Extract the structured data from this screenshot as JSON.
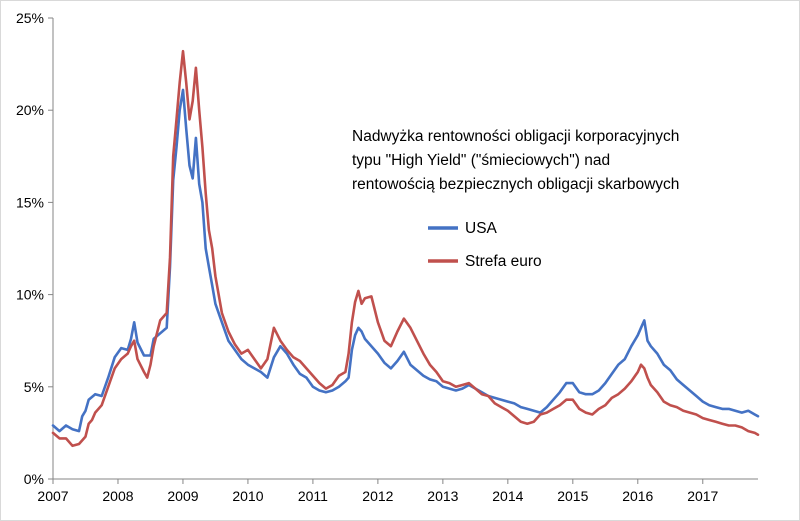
{
  "chart_data": {
    "type": "line",
    "title_lines": [
      "Nadwyżka rentowności obligacji korporacyjnych",
      "typu \"High Yield\" (\"śmieciowych\") nad",
      "rentowością bezpiecznych obligacji skarbowych"
    ],
    "xlabel": "",
    "ylabel": "",
    "xlim": [
      2007.0,
      2017.85
    ],
    "ylim": [
      0,
      25
    ],
    "x_ticks": [
      2007,
      2008,
      2009,
      2010,
      2011,
      2012,
      2013,
      2014,
      2015,
      2016,
      2017
    ],
    "x_tick_labels": [
      "2007",
      "2008",
      "2009",
      "2010",
      "2011",
      "2012",
      "2013",
      "2014",
      "2015",
      "2016",
      "2017"
    ],
    "y_ticks": [
      0,
      5,
      10,
      15,
      20,
      25
    ],
    "y_tick_labels": [
      "0%",
      "5%",
      "10%",
      "15%",
      "20%",
      "25%"
    ],
    "legend_position": "inside-upper-right",
    "series": [
      {
        "name": "USA",
        "color": "#4472c4",
        "points": [
          [
            2007.0,
            2.9
          ],
          [
            2007.1,
            2.6
          ],
          [
            2007.2,
            2.9
          ],
          [
            2007.3,
            2.7
          ],
          [
            2007.4,
            2.6
          ],
          [
            2007.45,
            3.4
          ],
          [
            2007.5,
            3.7
          ],
          [
            2007.55,
            4.3
          ],
          [
            2007.65,
            4.6
          ],
          [
            2007.75,
            4.5
          ],
          [
            2007.85,
            5.5
          ],
          [
            2007.95,
            6.6
          ],
          [
            2008.05,
            7.1
          ],
          [
            2008.15,
            7.0
          ],
          [
            2008.2,
            7.6
          ],
          [
            2008.25,
            8.5
          ],
          [
            2008.3,
            7.4
          ],
          [
            2008.4,
            6.7
          ],
          [
            2008.5,
            6.7
          ],
          [
            2008.55,
            7.6
          ],
          [
            2008.65,
            7.9
          ],
          [
            2008.75,
            8.2
          ],
          [
            2008.8,
            11.5
          ],
          [
            2008.85,
            16.2
          ],
          [
            2008.9,
            18.0
          ],
          [
            2008.95,
            20.0
          ],
          [
            2009.0,
            21.1
          ],
          [
            2009.05,
            19.0
          ],
          [
            2009.1,
            17.0
          ],
          [
            2009.15,
            16.3
          ],
          [
            2009.2,
            18.5
          ],
          [
            2009.25,
            16.0
          ],
          [
            2009.3,
            15.0
          ],
          [
            2009.35,
            12.5
          ],
          [
            2009.4,
            11.5
          ],
          [
            2009.45,
            10.5
          ],
          [
            2009.5,
            9.5
          ],
          [
            2009.6,
            8.5
          ],
          [
            2009.7,
            7.5
          ],
          [
            2009.8,
            7.0
          ],
          [
            2009.9,
            6.5
          ],
          [
            2010.0,
            6.2
          ],
          [
            2010.1,
            6.0
          ],
          [
            2010.2,
            5.8
          ],
          [
            2010.3,
            5.5
          ],
          [
            2010.4,
            6.6
          ],
          [
            2010.5,
            7.2
          ],
          [
            2010.6,
            6.8
          ],
          [
            2010.7,
            6.2
          ],
          [
            2010.8,
            5.7
          ],
          [
            2010.9,
            5.5
          ],
          [
            2011.0,
            5.0
          ],
          [
            2011.1,
            4.8
          ],
          [
            2011.2,
            4.7
          ],
          [
            2011.3,
            4.8
          ],
          [
            2011.4,
            5.0
          ],
          [
            2011.5,
            5.3
          ],
          [
            2011.55,
            5.5
          ],
          [
            2011.6,
            7.0
          ],
          [
            2011.65,
            7.8
          ],
          [
            2011.7,
            8.2
          ],
          [
            2011.75,
            8.0
          ],
          [
            2011.8,
            7.6
          ],
          [
            2011.9,
            7.2
          ],
          [
            2012.0,
            6.8
          ],
          [
            2012.1,
            6.3
          ],
          [
            2012.2,
            6.0
          ],
          [
            2012.3,
            6.4
          ],
          [
            2012.4,
            6.9
          ],
          [
            2012.5,
            6.2
          ],
          [
            2012.6,
            5.9
          ],
          [
            2012.7,
            5.6
          ],
          [
            2012.8,
            5.4
          ],
          [
            2012.9,
            5.3
          ],
          [
            2013.0,
            5.0
          ],
          [
            2013.1,
            4.9
          ],
          [
            2013.2,
            4.8
          ],
          [
            2013.3,
            4.9
          ],
          [
            2013.4,
            5.1
          ],
          [
            2013.5,
            4.9
          ],
          [
            2013.6,
            4.7
          ],
          [
            2013.7,
            4.5
          ],
          [
            2013.8,
            4.4
          ],
          [
            2013.9,
            4.3
          ],
          [
            2014.0,
            4.2
          ],
          [
            2014.1,
            4.1
          ],
          [
            2014.2,
            3.9
          ],
          [
            2014.3,
            3.8
          ],
          [
            2014.4,
            3.7
          ],
          [
            2014.5,
            3.6
          ],
          [
            2014.6,
            3.9
          ],
          [
            2014.7,
            4.3
          ],
          [
            2014.8,
            4.7
          ],
          [
            2014.9,
            5.2
          ],
          [
            2015.0,
            5.2
          ],
          [
            2015.1,
            4.7
          ],
          [
            2015.2,
            4.6
          ],
          [
            2015.3,
            4.6
          ],
          [
            2015.4,
            4.8
          ],
          [
            2015.5,
            5.2
          ],
          [
            2015.6,
            5.7
          ],
          [
            2015.7,
            6.2
          ],
          [
            2015.8,
            6.5
          ],
          [
            2015.9,
            7.2
          ],
          [
            2016.0,
            7.8
          ],
          [
            2016.05,
            8.2
          ],
          [
            2016.1,
            8.6
          ],
          [
            2016.15,
            7.5
          ],
          [
            2016.2,
            7.2
          ],
          [
            2016.3,
            6.8
          ],
          [
            2016.4,
            6.2
          ],
          [
            2016.5,
            5.9
          ],
          [
            2016.6,
            5.4
          ],
          [
            2016.7,
            5.1
          ],
          [
            2016.8,
            4.8
          ],
          [
            2016.9,
            4.5
          ],
          [
            2017.0,
            4.2
          ],
          [
            2017.1,
            4.0
          ],
          [
            2017.2,
            3.9
          ],
          [
            2017.3,
            3.8
          ],
          [
            2017.4,
            3.8
          ],
          [
            2017.5,
            3.7
          ],
          [
            2017.6,
            3.6
          ],
          [
            2017.7,
            3.7
          ],
          [
            2017.8,
            3.5
          ],
          [
            2017.85,
            3.4
          ]
        ]
      },
      {
        "name": "Strefa euro",
        "color": "#c0504d",
        "points": [
          [
            2007.0,
            2.5
          ],
          [
            2007.1,
            2.2
          ],
          [
            2007.2,
            2.2
          ],
          [
            2007.3,
            1.8
          ],
          [
            2007.4,
            1.9
          ],
          [
            2007.5,
            2.3
          ],
          [
            2007.55,
            3.0
          ],
          [
            2007.6,
            3.2
          ],
          [
            2007.65,
            3.6
          ],
          [
            2007.75,
            4.0
          ],
          [
            2007.85,
            5.0
          ],
          [
            2007.95,
            6.0
          ],
          [
            2008.05,
            6.5
          ],
          [
            2008.15,
            6.8
          ],
          [
            2008.2,
            7.2
          ],
          [
            2008.25,
            7.5
          ],
          [
            2008.3,
            6.5
          ],
          [
            2008.4,
            5.8
          ],
          [
            2008.45,
            5.5
          ],
          [
            2008.5,
            6.2
          ],
          [
            2008.55,
            7.2
          ],
          [
            2008.65,
            8.6
          ],
          [
            2008.75,
            9.0
          ],
          [
            2008.8,
            12.0
          ],
          [
            2008.85,
            17.5
          ],
          [
            2008.9,
            19.5
          ],
          [
            2008.95,
            21.5
          ],
          [
            2009.0,
            23.2
          ],
          [
            2009.05,
            21.5
          ],
          [
            2009.1,
            19.5
          ],
          [
            2009.15,
            20.5
          ],
          [
            2009.2,
            22.3
          ],
          [
            2009.25,
            20.0
          ],
          [
            2009.3,
            18.0
          ],
          [
            2009.35,
            15.5
          ],
          [
            2009.4,
            13.5
          ],
          [
            2009.45,
            12.5
          ],
          [
            2009.5,
            11.0
          ],
          [
            2009.6,
            9.0
          ],
          [
            2009.7,
            8.0
          ],
          [
            2009.8,
            7.3
          ],
          [
            2009.9,
            6.8
          ],
          [
            2010.0,
            7.0
          ],
          [
            2010.1,
            6.5
          ],
          [
            2010.2,
            6.0
          ],
          [
            2010.3,
            6.5
          ],
          [
            2010.4,
            8.2
          ],
          [
            2010.5,
            7.5
          ],
          [
            2010.6,
            7.0
          ],
          [
            2010.7,
            6.6
          ],
          [
            2010.8,
            6.4
          ],
          [
            2010.9,
            6.0
          ],
          [
            2011.0,
            5.6
          ],
          [
            2011.1,
            5.2
          ],
          [
            2011.2,
            4.9
          ],
          [
            2011.3,
            5.1
          ],
          [
            2011.4,
            5.6
          ],
          [
            2011.5,
            5.8
          ],
          [
            2011.55,
            6.8
          ],
          [
            2011.6,
            8.5
          ],
          [
            2011.65,
            9.6
          ],
          [
            2011.7,
            10.2
          ],
          [
            2011.75,
            9.5
          ],
          [
            2011.8,
            9.8
          ],
          [
            2011.9,
            9.9
          ],
          [
            2012.0,
            8.5
          ],
          [
            2012.1,
            7.5
          ],
          [
            2012.2,
            7.2
          ],
          [
            2012.3,
            8.0
          ],
          [
            2012.4,
            8.7
          ],
          [
            2012.5,
            8.2
          ],
          [
            2012.6,
            7.5
          ],
          [
            2012.7,
            6.8
          ],
          [
            2012.8,
            6.2
          ],
          [
            2012.9,
            5.8
          ],
          [
            2013.0,
            5.3
          ],
          [
            2013.1,
            5.2
          ],
          [
            2013.2,
            5.0
          ],
          [
            2013.3,
            5.1
          ],
          [
            2013.4,
            5.2
          ],
          [
            2013.5,
            4.9
          ],
          [
            2013.6,
            4.6
          ],
          [
            2013.7,
            4.5
          ],
          [
            2013.8,
            4.1
          ],
          [
            2013.9,
            3.9
          ],
          [
            2014.0,
            3.7
          ],
          [
            2014.1,
            3.4
          ],
          [
            2014.2,
            3.1
          ],
          [
            2014.3,
            3.0
          ],
          [
            2014.4,
            3.1
          ],
          [
            2014.5,
            3.5
          ],
          [
            2014.6,
            3.6
          ],
          [
            2014.7,
            3.8
          ],
          [
            2014.8,
            4.0
          ],
          [
            2014.9,
            4.3
          ],
          [
            2015.0,
            4.3
          ],
          [
            2015.1,
            3.8
          ],
          [
            2015.2,
            3.6
          ],
          [
            2015.3,
            3.5
          ],
          [
            2015.4,
            3.8
          ],
          [
            2015.5,
            4.0
          ],
          [
            2015.6,
            4.4
          ],
          [
            2015.7,
            4.6
          ],
          [
            2015.8,
            4.9
          ],
          [
            2015.9,
            5.3
          ],
          [
            2016.0,
            5.8
          ],
          [
            2016.05,
            6.2
          ],
          [
            2016.1,
            6.0
          ],
          [
            2016.15,
            5.5
          ],
          [
            2016.2,
            5.1
          ],
          [
            2016.3,
            4.7
          ],
          [
            2016.4,
            4.2
          ],
          [
            2016.5,
            4.0
          ],
          [
            2016.6,
            3.9
          ],
          [
            2016.7,
            3.7
          ],
          [
            2016.8,
            3.6
          ],
          [
            2016.9,
            3.5
          ],
          [
            2017.0,
            3.3
          ],
          [
            2017.1,
            3.2
          ],
          [
            2017.2,
            3.1
          ],
          [
            2017.3,
            3.0
          ],
          [
            2017.4,
            2.9
          ],
          [
            2017.5,
            2.9
          ],
          [
            2017.6,
            2.8
          ],
          [
            2017.7,
            2.6
          ],
          [
            2017.8,
            2.5
          ],
          [
            2017.85,
            2.4
          ]
        ]
      }
    ]
  }
}
